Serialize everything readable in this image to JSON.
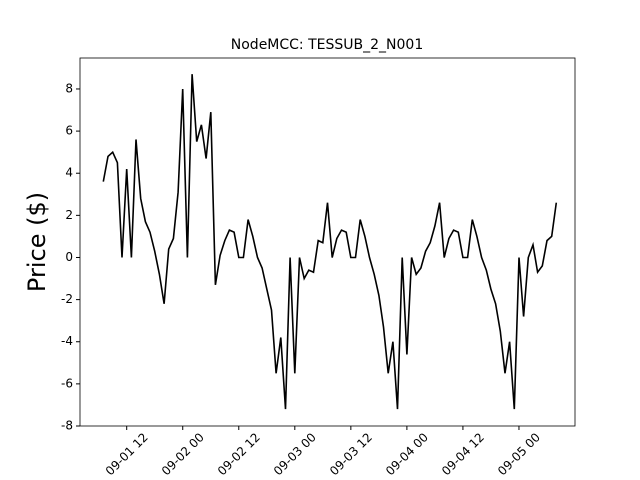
{
  "chart_data": {
    "type": "line",
    "title": "NodeMCC: TESSUB_2_N001",
    "y_label": "Price ($)",
    "x": [
      "09-01 07",
      "09-01 08",
      "09-01 09",
      "09-01 10",
      "09-01 11",
      "09-01 12",
      "09-01 13",
      "09-01 14",
      "09-01 15",
      "09-01 16",
      "09-01 17",
      "09-01 18",
      "09-01 19",
      "09-01 20",
      "09-01 21",
      "09-01 22",
      "09-01 23",
      "09-02 00",
      "09-02 01",
      "09-02 02",
      "09-02 03",
      "09-02 04",
      "09-02 05",
      "09-02 06",
      "09-02 07",
      "09-02 08",
      "09-02 09",
      "09-02 10",
      "09-02 11",
      "09-02 12",
      "09-02 13",
      "09-02 14",
      "09-02 15",
      "09-02 16",
      "09-02 17",
      "09-02 18",
      "09-02 19",
      "09-02 20",
      "09-02 21",
      "09-02 22",
      "09-02 23",
      "09-03 00",
      "09-03 01",
      "09-03 02",
      "09-03 03",
      "09-03 04",
      "09-03 05",
      "09-03 06",
      "09-03 07",
      "09-03 08",
      "09-03 09",
      "09-03 10",
      "09-03 11",
      "09-03 12",
      "09-03 13",
      "09-03 14",
      "09-03 15",
      "09-03 16",
      "09-03 17",
      "09-03 18",
      "09-03 19",
      "09-03 20",
      "09-03 21",
      "09-03 22",
      "09-03 23",
      "09-04 00",
      "09-04 01",
      "09-04 02",
      "09-04 03",
      "09-04 04",
      "09-04 05",
      "09-04 06",
      "09-04 07",
      "09-04 08",
      "09-04 09",
      "09-04 10",
      "09-04 11",
      "09-04 12",
      "09-04 13",
      "09-04 14",
      "09-04 15",
      "09-04 16",
      "09-04 17",
      "09-04 18",
      "09-04 19",
      "09-04 20",
      "09-04 21",
      "09-04 22",
      "09-04 23",
      "09-05 00",
      "09-05 01",
      "09-05 02",
      "09-05 03",
      "09-05 04",
      "09-05 05",
      "09-05 06",
      "09-05 07",
      "09-05 08"
    ],
    "series": [
      {
        "color": "#000000",
        "values": [
          3.6,
          4.8,
          5.0,
          4.5,
          0,
          4.2,
          0,
          5.6,
          2.8,
          1.7,
          1.2,
          0.3,
          -0.8,
          -2.2,
          0.4,
          0.9,
          3.1,
          8.0,
          0,
          8.7,
          5.5,
          6.3,
          4.7,
          6.9,
          -1.3,
          0.1,
          0.8,
          1.3,
          1.2,
          0,
          0,
          1.8,
          1.0,
          0,
          -0.5,
          -1.5,
          -2.5,
          -5.5,
          -3.8,
          -7.2,
          0,
          -5.5,
          0,
          -1.0,
          -0.6,
          -0.7,
          0.8,
          0.7,
          2.6,
          0,
          0.9,
          1.3,
          1.2,
          0,
          0,
          1.8,
          1.0,
          0,
          -0.8,
          -1.8,
          -3.3,
          -5.5,
          -4.0,
          -7.2,
          0,
          -4.6,
          0,
          -0.8,
          -0.5,
          0.3,
          0.7,
          1.5,
          2.6,
          0,
          0.9,
          1.3,
          1.2,
          0,
          0,
          1.8,
          1.0,
          0,
          -0.6,
          -1.5,
          -2.2,
          -3.5,
          -5.5,
          -4.0,
          -7.2,
          0,
          -2.8,
          0,
          0.6,
          -0.7,
          -0.4,
          0.8,
          1.0,
          2.6
        ]
      }
    ],
    "xlim": [
      "09-01 02",
      "09-05 12"
    ],
    "xticks": [
      "09-01 12",
      "09-02 00",
      "09-02 12",
      "09-03 00",
      "09-03 12",
      "09-04 00",
      "09-04 12",
      "09-05 00"
    ],
    "ylim": [
      -8,
      9.47
    ],
    "yticks": [
      -8,
      -6,
      -4,
      -2,
      0,
      2,
      4,
      6,
      8
    ]
  }
}
